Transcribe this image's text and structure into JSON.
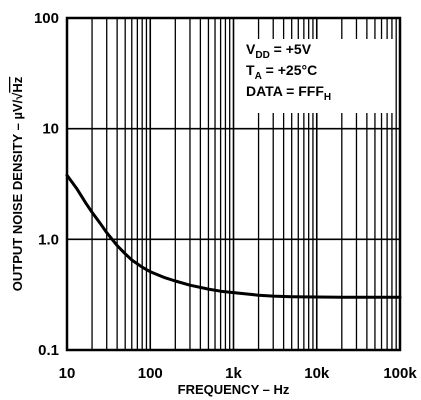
{
  "chart_data": {
    "type": "line",
    "title": "",
    "xlabel": "FREQUENCY – Hz",
    "ylabel_prefix": "OUTPUT NOISE DENSITY – µV/",
    "ylabel_sqrt": "√",
    "ylabel_suffix": "Hz",
    "x_scale": "log",
    "y_scale": "log",
    "xlim": [
      10,
      100000
    ],
    "ylim": [
      0.1,
      100
    ],
    "grid": true,
    "x_ticks": [
      {
        "value": 10,
        "label": "10"
      },
      {
        "value": 100,
        "label": "100"
      },
      {
        "value": 1000,
        "label": "1k"
      },
      {
        "value": 10000,
        "label": "10k"
      },
      {
        "value": 100000,
        "label": "100k"
      }
    ],
    "y_ticks": [
      {
        "value": 0.1,
        "label": "0.1"
      },
      {
        "value": 1,
        "label": "1.0"
      },
      {
        "value": 10,
        "label": "10"
      },
      {
        "value": 100,
        "label": "100"
      }
    ],
    "annotations": [
      {
        "main": "V",
        "sub": "DD",
        "rest": " = +5V"
      },
      {
        "main": "T",
        "sub": "A",
        "rest": " = +25°C"
      },
      {
        "main": "DATA = FFF",
        "sub": "H",
        "rest": ""
      }
    ],
    "series": [
      {
        "x": [
          10,
          13,
          17,
          20,
          25,
          30,
          40,
          50,
          60,
          80,
          100,
          150,
          200,
          300,
          500,
          700,
          1000,
          1500,
          2000,
          3000,
          5000,
          7000,
          10000,
          20000,
          50000,
          100000
        ],
        "y": [
          3.8,
          2.9,
          2.1,
          1.75,
          1.4,
          1.15,
          0.88,
          0.74,
          0.65,
          0.56,
          0.51,
          0.45,
          0.42,
          0.385,
          0.355,
          0.34,
          0.33,
          0.32,
          0.313,
          0.307,
          0.303,
          0.302,
          0.301,
          0.3,
          0.3,
          0.3
        ]
      }
    ]
  }
}
